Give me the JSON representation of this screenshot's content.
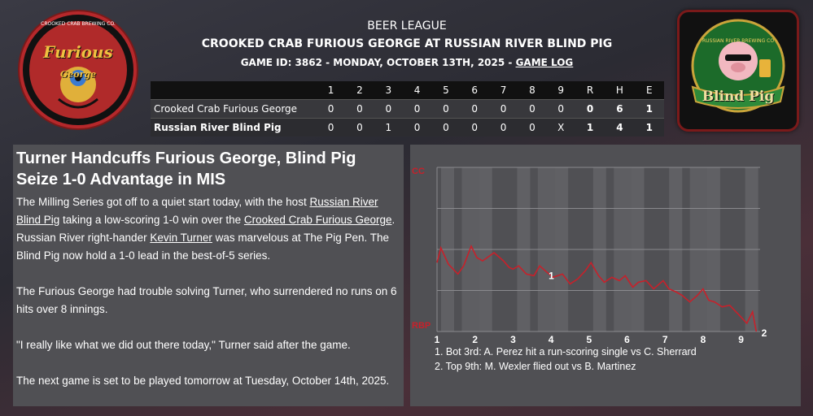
{
  "header": {
    "league": "BEER LEAGUE",
    "matchup": "CROOKED CRAB FURIOUS GEORGE AT RUSSIAN RIVER BLIND PIG",
    "game_info": "GAME ID: 3862 - MONDAY, OCTOBER 13TH, 2025 - ",
    "game_log_link": "GAME LOG"
  },
  "logos": {
    "away": {
      "ring_text": "CROOKED CRAB BREWING CO.",
      "name_line1": "Furious",
      "name_line2": "George"
    },
    "home": {
      "banner_text": "Blind Pig",
      "ring_text": "RUSSIAN RIVER BREWING CO"
    }
  },
  "linescore": {
    "headers": [
      "",
      "1",
      "2",
      "3",
      "4",
      "5",
      "6",
      "7",
      "8",
      "9",
      "R",
      "H",
      "E"
    ],
    "rows": [
      {
        "team": "Crooked Crab Furious George",
        "innings": [
          "0",
          "0",
          "0",
          "0",
          "0",
          "0",
          "0",
          "0",
          "0"
        ],
        "r": "0",
        "h": "6",
        "e": "1"
      },
      {
        "team": "Russian River Blind Pig",
        "innings": [
          "0",
          "0",
          "1",
          "0",
          "0",
          "0",
          "0",
          "0",
          "X"
        ],
        "r": "1",
        "h": "4",
        "e": "1"
      }
    ]
  },
  "article": {
    "headline": "Turner Handcuffs Furious George, Blind Pig Seize 1-0 Advantage in MIS",
    "p1_a": "The Milling Series got off to a quiet start today, with the host ",
    "p1_link1": "Russian River Blind Pig",
    "p1_b": " taking a low-scoring 1-0 win over the ",
    "p1_link2": "Crooked Crab Furious George",
    "p1_c": ". Russian River right-hander ",
    "p1_link3": "Kevin Turner",
    "p1_d": " was marvelous at The Pig Pen. The Blind Pig now hold a 1-0 lead in the best-of-5 series.",
    "p2": "The Furious George had trouble solving Turner, who surrendered no runs on 6 hits over 8 innings.",
    "p3": "\"I really like what we did out there today,\" Turner said after the game.",
    "p4": "The next game is set to be played tomorrow at Tuesday, October 14th, 2025."
  },
  "chart_data": {
    "type": "line",
    "title": "",
    "top_label": "CC",
    "bottom_label": "RBP",
    "x_ticks": [
      "1",
      "2",
      "3",
      "4",
      "5",
      "6",
      "7",
      "8",
      "9"
    ],
    "x_range": [
      1,
      9.5
    ],
    "ylim": [
      0,
      1
    ],
    "line_color": "#c8202a",
    "series": [
      {
        "values": [
          [
            1.0,
            0.42
          ],
          [
            1.1,
            0.51
          ],
          [
            1.3,
            0.41
          ],
          [
            1.55,
            0.35
          ],
          [
            1.7,
            0.4
          ],
          [
            1.9,
            0.52
          ],
          [
            2.05,
            0.45
          ],
          [
            2.2,
            0.43
          ],
          [
            2.5,
            0.48
          ],
          [
            2.75,
            0.43
          ],
          [
            2.9,
            0.39
          ],
          [
            3.0,
            0.38
          ],
          [
            3.15,
            0.4
          ],
          [
            3.35,
            0.35
          ],
          [
            3.55,
            0.34
          ],
          [
            3.7,
            0.4
          ],
          [
            3.9,
            0.36
          ],
          [
            4.05,
            0.33
          ],
          [
            4.3,
            0.35
          ],
          [
            4.5,
            0.29
          ],
          [
            4.7,
            0.32
          ],
          [
            4.9,
            0.37
          ],
          [
            5.05,
            0.42
          ],
          [
            5.25,
            0.34
          ],
          [
            5.4,
            0.3
          ],
          [
            5.6,
            0.33
          ],
          [
            5.8,
            0.31
          ],
          [
            5.95,
            0.34
          ],
          [
            6.15,
            0.27
          ],
          [
            6.3,
            0.3
          ],
          [
            6.5,
            0.31
          ],
          [
            6.7,
            0.26
          ],
          [
            6.95,
            0.31
          ],
          [
            7.1,
            0.26
          ],
          [
            7.3,
            0.24
          ],
          [
            7.45,
            0.22
          ],
          [
            7.65,
            0.18
          ],
          [
            7.85,
            0.22
          ],
          [
            8.0,
            0.26
          ],
          [
            8.15,
            0.19
          ],
          [
            8.3,
            0.18
          ],
          [
            8.5,
            0.15
          ],
          [
            8.7,
            0.16
          ],
          [
            8.95,
            0.1
          ],
          [
            9.15,
            0.05
          ],
          [
            9.3,
            0.12
          ],
          [
            9.4,
            0.0
          ]
        ]
      }
    ],
    "markers": [
      {
        "label": "1",
        "x": 3.85,
        "y": 0.35
      },
      {
        "label": "2",
        "x": 9.45,
        "y": 0.0
      }
    ],
    "notes": [
      "1. Bot 3rd: A. Perez hit a run-scoring single vs C. Sherrard",
      "2. Top 9th: M. Wexler flied out vs B. Martinez"
    ]
  }
}
